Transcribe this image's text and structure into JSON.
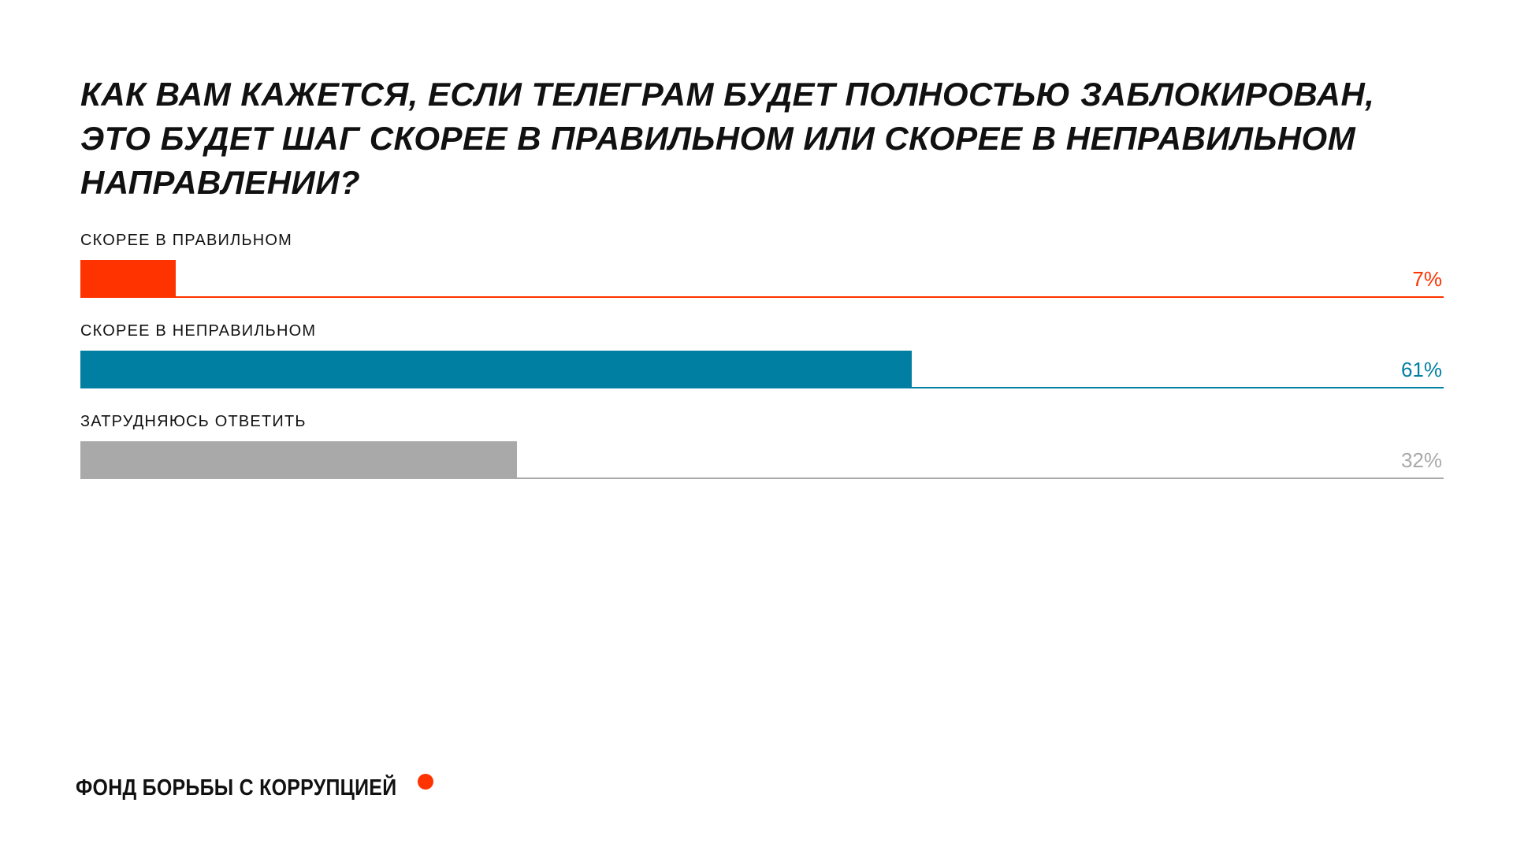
{
  "title_lines": [
    "КАК ВАМ КАЖЕТСЯ, ЕСЛИ ТЕЛЕГРАМ БУДЕТ ПОЛНОСТЬЮ ЗАБЛОКИРОВАН,",
    "ЭТО БУДЕТ ШАГ СКОРЕЕ В ПРАВИЛЬНОМ ИЛИ СКОРЕЕ В НЕПРАВИЛЬНОМ",
    "НАПРАВЛЕНИИ?"
  ],
  "footer": {
    "org_name": "ФОНД БОРЬБЫ С КОРРУПЦИЕЙ",
    "dot_color": "#ff3300"
  },
  "chart_data": {
    "type": "bar",
    "orientation": "horizontal",
    "title": "КАК ВАМ КАЖЕТСЯ, ЕСЛИ ТЕЛЕГРАМ БУДЕТ ПОЛНОСТЬЮ ЗАБЛОКИРОВАН, ЭТО БУДЕТ ШАГ СКОРЕЕ В ПРАВИЛЬНОМ ИЛИ СКОРЕЕ В НЕПРАВИЛЬНОМ НАПРАВЛЕНИИ?",
    "categories": [
      "СКОРЕЕ В ПРАВИЛЬНОМ",
      "СКОРЕЕ В НЕПРАВИЛЬНОМ",
      "ЗАТРУДНЯЮСЬ ОТВЕТИТЬ"
    ],
    "values": [
      7,
      61,
      32
    ],
    "value_labels": [
      "7%",
      "61%",
      "32%"
    ],
    "colors": [
      "#ff3300",
      "#007fa3",
      "#a9a9a9"
    ],
    "value_text_colors": [
      "#ff3300",
      "#007fa3",
      "#a9a9a9"
    ],
    "xlim": [
      0,
      100
    ],
    "unit": "%",
    "grid": false,
    "legend": "none"
  }
}
